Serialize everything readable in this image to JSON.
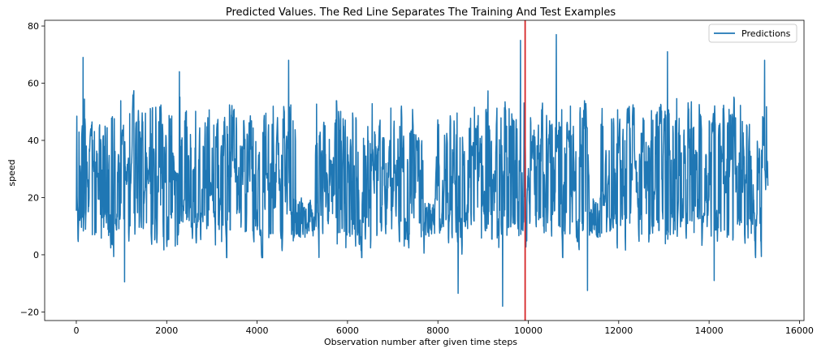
{
  "chart_data": {
    "type": "line",
    "title": "Predicted Values. The Red Line Separates The Training And Test Examples",
    "xlabel": "Observation number after given time steps",
    "ylabel": "speed",
    "xlim": [
      -700,
      16100
    ],
    "ylim": [
      -23,
      82
    ],
    "x_ticks": [
      0,
      2000,
      4000,
      6000,
      8000,
      10000,
      12000,
      14000,
      16000
    ],
    "x_tick_labels": [
      "0",
      "2000",
      "4000",
      "6000",
      "8000",
      "10000",
      "12000",
      "14000",
      "16000"
    ],
    "y_ticks": [
      -20,
      0,
      20,
      40,
      60,
      80
    ],
    "y_tick_labels": [
      "−20",
      "0",
      "20",
      "40",
      "60",
      "80"
    ],
    "legend": {
      "position": "top-right",
      "entries": [
        "Predictions"
      ]
    },
    "split_line": {
      "x": 9930,
      "color": "#d62728"
    },
    "grid": false,
    "series": [
      {
        "name": "Predictions",
        "color": "#1f77b4",
        "x_range": [
          0,
          15300
        ],
        "value_range": [
          -18,
          77
        ],
        "typical_band": [
          5,
          55
        ],
        "notable_points": [
          {
            "x": 150,
            "y": 69
          },
          {
            "x": 1070,
            "y": -9.5
          },
          {
            "x": 2280,
            "y": 64
          },
          {
            "x": 4700,
            "y": 68
          },
          {
            "x": 8450,
            "y": -13.5
          },
          {
            "x": 9430,
            "y": -18
          },
          {
            "x": 9830,
            "y": 75
          },
          {
            "x": 10620,
            "y": 77
          },
          {
            "x": 11310,
            "y": -12.5
          },
          {
            "x": 13080,
            "y": 71
          },
          {
            "x": 14110,
            "y": -9
          },
          {
            "x": 15230,
            "y": 68
          }
        ]
      }
    ]
  }
}
